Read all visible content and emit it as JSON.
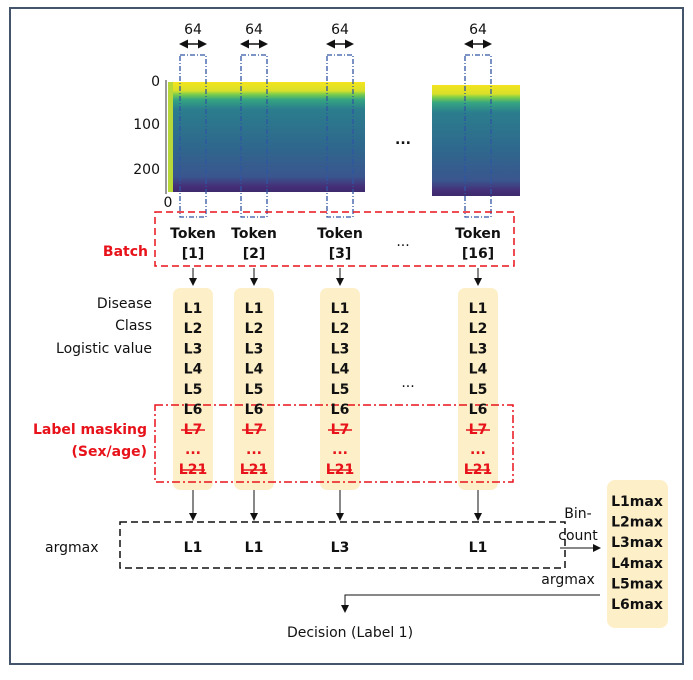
{
  "spectrogram": {
    "token_width": "64",
    "y_ticks": [
      "0",
      "100",
      "200"
    ],
    "x_tick": "0",
    "ellipsis": "..."
  },
  "batch_label": "Batch",
  "tokens": [
    {
      "label": "Token",
      "index": "[1]"
    },
    {
      "label": "Token",
      "index": "[2]"
    },
    {
      "label": "Token",
      "index": "[3]"
    },
    {
      "label": "Token",
      "index": "[16]"
    }
  ],
  "token_ellipsis": "...",
  "logit_caption": [
    "Disease",
    "Class",
    "Logistic value"
  ],
  "logit_labels": [
    "L1",
    "L2",
    "L3",
    "L4",
    "L5",
    "L6"
  ],
  "masked_labels": [
    "L7",
    "...",
    "L21"
  ],
  "column_ellipsis": "...",
  "masking_caption": [
    "Label masking",
    "(Sex/age)"
  ],
  "argmax_label": "argmax",
  "argmax_results": [
    "L1",
    "L1",
    "L3",
    "L1"
  ],
  "bincount_label": [
    "Bin-",
    "count"
  ],
  "second_argmax_label": "argmax",
  "max_labels": [
    "L1max",
    "L2max",
    "L3max",
    "L4max",
    "L5max",
    "L6max"
  ],
  "decision": "Decision (Label 1)"
}
